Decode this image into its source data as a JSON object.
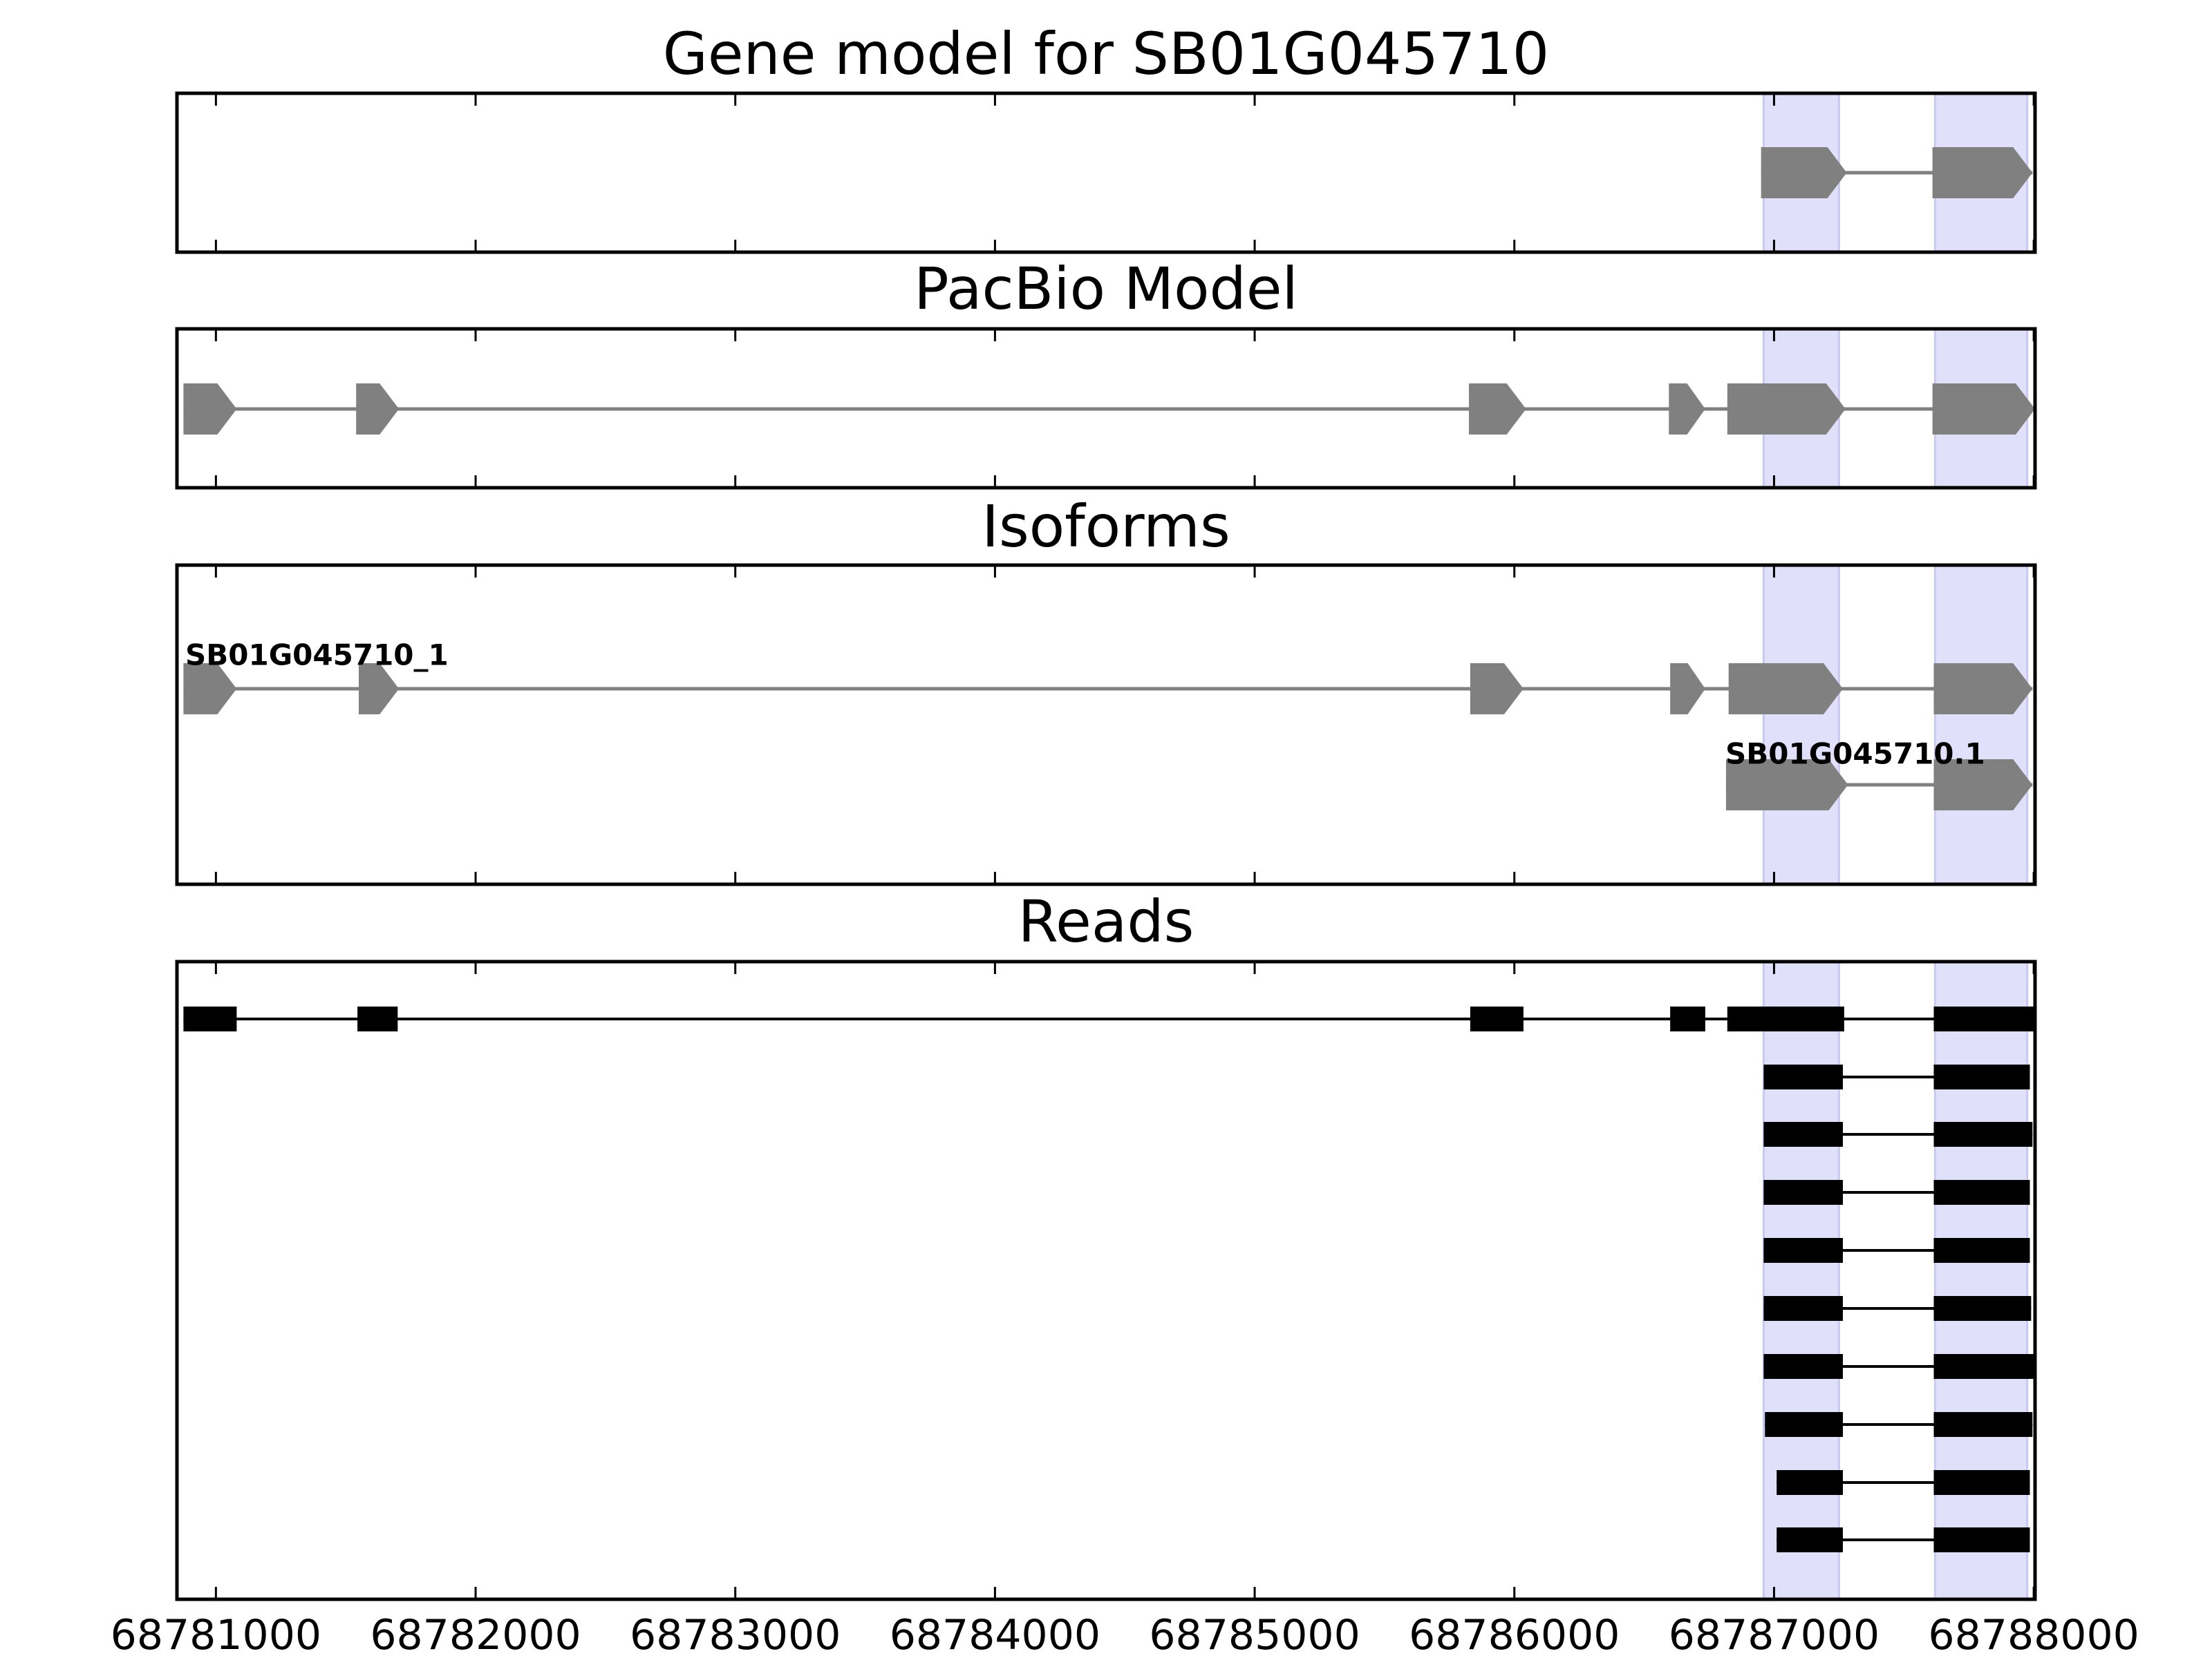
{
  "colors": {
    "highlight": "#e0e0fb",
    "highlight_edge": "#c9c9f0",
    "exon": "#808080",
    "read": "#000000",
    "frame": "#000000"
  },
  "chart_data": {
    "type": "gene-model",
    "xlim": [
      68780850,
      68788005
    ],
    "xticks": [
      68781000,
      68782000,
      68783000,
      68784000,
      68785000,
      68786000,
      68787000,
      68788000
    ],
    "xtick_labels": [
      "68781000",
      "68782000",
      "68783000",
      "68784000",
      "68785000",
      "68786000",
      "68787000",
      "68788000"
    ],
    "highlight_regions": [
      [
        68786960,
        68787250
      ],
      [
        68787620,
        68787975
      ]
    ],
    "panels": [
      {
        "id": "gene",
        "title": "Gene model for SB01G045710",
        "style": "arrow",
        "tracks": [
          {
            "label": "",
            "exons": [
              [
                68786950,
                68787280
              ],
              [
                68787610,
                68787995
              ]
            ]
          }
        ]
      },
      {
        "id": "pacbio",
        "title": "PacBio Model",
        "style": "arrow",
        "tracks": [
          {
            "label": "",
            "exons": [
              [
                68780875,
                68781080
              ],
              [
                68781540,
                68781705
              ],
              [
                68785825,
                68786045
              ],
              [
                68786595,
                68786735
              ],
              [
                68786820,
                68787275
              ],
              [
                68787610,
                68788005
              ]
            ]
          }
        ]
      },
      {
        "id": "isoforms",
        "title": "Isoforms",
        "style": "arrow",
        "tracks": [
          {
            "label": "SB01G045710_1",
            "exons": [
              [
                68780875,
                68781080
              ],
              [
                68781550,
                68781705
              ],
              [
                68785830,
                68786035
              ],
              [
                68786600,
                68786735
              ],
              [
                68786825,
                68787265
              ],
              [
                68787615,
                68787995
              ]
            ]
          },
          {
            "label": "SB01G045710.1",
            "exons": [
              [
                68786815,
                68787285
              ],
              [
                68787615,
                68787995
              ]
            ]
          }
        ]
      },
      {
        "id": "reads",
        "title": "Reads",
        "style": "block",
        "tracks": [
          {
            "label": "",
            "exons": [
              [
                68780875,
                68781080
              ],
              [
                68781545,
                68781700
              ],
              [
                68785830,
                68786035
              ],
              [
                68786600,
                68786735
              ],
              [
                68786820,
                68787270
              ],
              [
                68787615,
                68788000
              ]
            ]
          },
          {
            "label": "",
            "exons": [
              [
                68786960,
                68787265
              ],
              [
                68787615,
                68787985
              ]
            ]
          },
          {
            "label": "",
            "exons": [
              [
                68786960,
                68787265
              ],
              [
                68787615,
                68787995
              ]
            ]
          },
          {
            "label": "",
            "exons": [
              [
                68786960,
                68787265
              ],
              [
                68787615,
                68787985
              ]
            ]
          },
          {
            "label": "",
            "exons": [
              [
                68786960,
                68787265
              ],
              [
                68787615,
                68787985
              ]
            ]
          },
          {
            "label": "",
            "exons": [
              [
                68786960,
                68787265
              ],
              [
                68787615,
                68787990
              ]
            ]
          },
          {
            "label": "",
            "exons": [
              [
                68786960,
                68787265
              ],
              [
                68787615,
                68788010
              ]
            ]
          },
          {
            "label": "",
            "exons": [
              [
                68786965,
                68787265
              ],
              [
                68787615,
                68787995
              ]
            ]
          },
          {
            "label": "",
            "exons": [
              [
                68787010,
                68787265
              ],
              [
                68787615,
                68787985
              ]
            ]
          },
          {
            "label": "",
            "exons": [
              [
                68787010,
                68787265
              ],
              [
                68787615,
                68787985
              ]
            ]
          }
        ]
      }
    ]
  }
}
